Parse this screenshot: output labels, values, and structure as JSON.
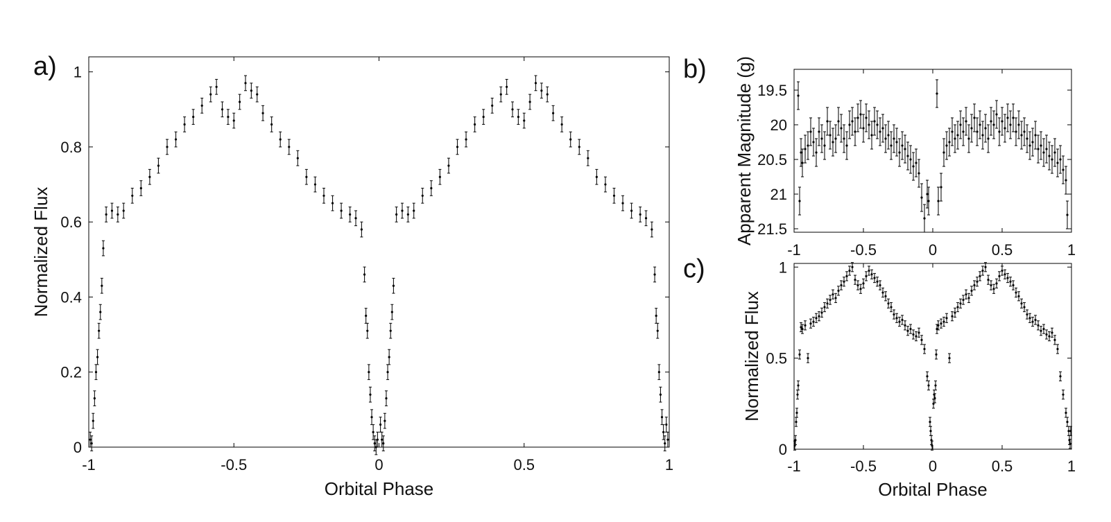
{
  "chart_data": [
    {
      "panel": "a)",
      "type": "scatter",
      "xlabel": "Orbital Phase",
      "ylabel": "Normalized Flux",
      "xlim": [
        -1,
        1
      ],
      "ylim": [
        0,
        1.04
      ],
      "xticks": [
        "-1",
        "-0.5",
        "0",
        "0.5",
        "1"
      ],
      "yticks": [
        "0",
        "0.2",
        "0.4",
        "0.6",
        "0.8",
        "1"
      ],
      "series": [
        {
          "x": [
            -0.995,
            -0.99,
            -0.985,
            -0.98,
            -0.975,
            -0.97,
            -0.965,
            -0.96,
            -0.955,
            -0.95,
            -0.94,
            -0.92,
            -0.9,
            -0.88,
            -0.85,
            -0.82,
            -0.79,
            -0.76,
            -0.73,
            -0.7,
            -0.67,
            -0.64,
            -0.61,
            -0.58,
            -0.56,
            -0.54,
            -0.52,
            -0.5,
            -0.48,
            -0.46,
            -0.44,
            -0.42,
            -0.4,
            -0.37,
            -0.34,
            -0.31,
            -0.28,
            -0.25,
            -0.22,
            -0.19,
            -0.16,
            -0.13,
            -0.1,
            -0.08,
            -0.06,
            -0.05,
            -0.045,
            -0.04,
            -0.035,
            -0.03,
            -0.025,
            -0.02,
            -0.015,
            -0.01,
            -0.005,
            0.005,
            0.01,
            0.015,
            0.02,
            0.025,
            0.03,
            0.035,
            0.04,
            0.045,
            0.05,
            0.06,
            0.08,
            0.1,
            0.12,
            0.15,
            0.18,
            0.21,
            0.24,
            0.27,
            0.3,
            0.33,
            0.36,
            0.39,
            0.42,
            0.44,
            0.46,
            0.48,
            0.5,
            0.52,
            0.54,
            0.56,
            0.58,
            0.6,
            0.63,
            0.66,
            0.69,
            0.72,
            0.75,
            0.78,
            0.81,
            0.84,
            0.87,
            0.9,
            0.92,
            0.94,
            0.95,
            0.955,
            0.96,
            0.965,
            0.97,
            0.975,
            0.98,
            0.985,
            0.99,
            0.995
          ],
          "y": [
            0.02,
            0.01,
            0.07,
            0.13,
            0.2,
            0.24,
            0.31,
            0.36,
            0.43,
            0.53,
            0.62,
            0.63,
            0.62,
            0.63,
            0.67,
            0.69,
            0.72,
            0.75,
            0.8,
            0.82,
            0.86,
            0.88,
            0.91,
            0.94,
            0.96,
            0.9,
            0.88,
            0.87,
            0.92,
            0.97,
            0.95,
            0.94,
            0.89,
            0.86,
            0.82,
            0.8,
            0.77,
            0.72,
            0.7,
            0.67,
            0.65,
            0.63,
            0.62,
            0.61,
            0.58,
            0.46,
            0.35,
            0.31,
            0.2,
            0.14,
            0.08,
            0.04,
            0.01,
            0.0,
            0.02,
            0.06,
            0.02,
            0.01,
            0.07,
            0.13,
            0.2,
            0.24,
            0.31,
            0.36,
            0.43,
            0.62,
            0.63,
            0.62,
            0.63,
            0.67,
            0.69,
            0.72,
            0.75,
            0.8,
            0.82,
            0.86,
            0.88,
            0.91,
            0.94,
            0.96,
            0.9,
            0.88,
            0.87,
            0.92,
            0.97,
            0.95,
            0.94,
            0.89,
            0.86,
            0.82,
            0.8,
            0.77,
            0.72,
            0.7,
            0.67,
            0.65,
            0.63,
            0.62,
            0.61,
            0.58,
            0.46,
            0.35,
            0.31,
            0.2,
            0.14,
            0.08,
            0.04,
            0.01,
            0.06,
            0.02
          ],
          "yerr": 0.02
        }
      ]
    },
    {
      "panel": "b)",
      "type": "scatter",
      "xlabel": "",
      "ylabel": "Apparent Magnitude (g)",
      "xlim": [
        -1,
        1
      ],
      "ylim": [
        19.2,
        21.55
      ],
      "y_reversed": true,
      "xticks": [
        "-1",
        "-0.5",
        "0",
        "0.5",
        "1"
      ],
      "yticks": [
        "19.5",
        "20",
        "20.5",
        "21",
        "21.5"
      ],
      "series": [
        {
          "x": [
            -0.97,
            -0.96,
            -0.95,
            -0.94,
            -0.92,
            -0.9,
            -0.88,
            -0.86,
            -0.84,
            -0.82,
            -0.8,
            -0.78,
            -0.76,
            -0.74,
            -0.72,
            -0.7,
            -0.68,
            -0.66,
            -0.64,
            -0.62,
            -0.6,
            -0.58,
            -0.56,
            -0.54,
            -0.52,
            -0.5,
            -0.48,
            -0.46,
            -0.44,
            -0.42,
            -0.4,
            -0.38,
            -0.36,
            -0.34,
            -0.32,
            -0.3,
            -0.28,
            -0.26,
            -0.24,
            -0.22,
            -0.2,
            -0.18,
            -0.16,
            -0.14,
            -0.12,
            -0.1,
            -0.08,
            -0.06,
            -0.04,
            -0.03,
            0.03,
            0.04,
            0.06,
            0.08,
            0.1,
            0.12,
            0.14,
            0.16,
            0.18,
            0.2,
            0.22,
            0.24,
            0.26,
            0.28,
            0.3,
            0.32,
            0.34,
            0.36,
            0.38,
            0.4,
            0.42,
            0.44,
            0.46,
            0.48,
            0.5,
            0.52,
            0.54,
            0.56,
            0.58,
            0.6,
            0.62,
            0.64,
            0.66,
            0.68,
            0.7,
            0.72,
            0.74,
            0.76,
            0.78,
            0.8,
            0.82,
            0.84,
            0.86,
            0.88,
            0.9,
            0.92,
            0.94,
            0.96,
            0.97
          ],
          "y": [
            19.58,
            21.1,
            20.4,
            20.55,
            20.35,
            20.3,
            20.1,
            20.25,
            20.4,
            20.1,
            20.2,
            20.3,
            19.95,
            20.15,
            20.25,
            20.2,
            19.95,
            20.05,
            20.2,
            20.3,
            20.0,
            19.95,
            20.1,
            19.9,
            19.85,
            20.05,
            19.9,
            20.0,
            20.15,
            19.95,
            20.0,
            20.1,
            20.05,
            20.2,
            20.15,
            20.3,
            20.2,
            20.25,
            20.4,
            20.3,
            20.35,
            20.45,
            20.5,
            20.6,
            20.55,
            20.7,
            21.05,
            21.35,
            21.0,
            21.1,
            19.55,
            21.1,
            20.9,
            20.4,
            20.3,
            20.25,
            20.1,
            20.2,
            20.15,
            20.0,
            20.1,
            19.95,
            20.2,
            20.05,
            19.9,
            20.1,
            20.0,
            20.15,
            20.05,
            20.2,
            19.95,
            20.0,
            19.85,
            20.1,
            19.95,
            20.05,
            19.9,
            20.0,
            19.9,
            20.1,
            20.0,
            20.15,
            20.1,
            20.2,
            20.3,
            20.25,
            20.15,
            20.35,
            20.3,
            20.4,
            20.35,
            20.45,
            20.5,
            20.4,
            20.55,
            20.5,
            20.65,
            20.8,
            21.3
          ],
          "yerr": 0.2
        }
      ]
    },
    {
      "panel": "c)",
      "type": "scatter",
      "xlabel": "Orbital Phase",
      "ylabel": "Normalized Flux",
      "xlim": [
        -1,
        1
      ],
      "ylim": [
        0,
        1.02
      ],
      "xticks": [
        "-1",
        "-0.5",
        "0",
        "0.5",
        "1"
      ],
      "yticks": [
        "0",
        "0.5",
        "1"
      ],
      "series": [
        {
          "x": [
            -0.995,
            -0.99,
            -0.985,
            -0.98,
            -0.975,
            -0.97,
            -0.96,
            -0.95,
            -0.94,
            -0.92,
            -0.9,
            -0.88,
            -0.86,
            -0.84,
            -0.82,
            -0.8,
            -0.78,
            -0.76,
            -0.74,
            -0.72,
            -0.7,
            -0.68,
            -0.66,
            -0.64,
            -0.62,
            -0.6,
            -0.58,
            -0.56,
            -0.54,
            -0.52,
            -0.5,
            -0.48,
            -0.46,
            -0.44,
            -0.42,
            -0.4,
            -0.38,
            -0.36,
            -0.34,
            -0.32,
            -0.3,
            -0.28,
            -0.26,
            -0.24,
            -0.22,
            -0.2,
            -0.18,
            -0.16,
            -0.14,
            -0.12,
            -0.1,
            -0.08,
            -0.06,
            -0.04,
            -0.03,
            -0.02,
            -0.015,
            -0.01,
            -0.005,
            0.005,
            0.01,
            0.015,
            0.02,
            0.025,
            0.03,
            0.04,
            0.06,
            0.08,
            0.1,
            0.12,
            0.14,
            0.16,
            0.18,
            0.2,
            0.22,
            0.24,
            0.26,
            0.28,
            0.3,
            0.32,
            0.34,
            0.36,
            0.38,
            0.4,
            0.42,
            0.44,
            0.46,
            0.48,
            0.5,
            0.52,
            0.54,
            0.56,
            0.58,
            0.6,
            0.62,
            0.64,
            0.66,
            0.68,
            0.7,
            0.72,
            0.74,
            0.76,
            0.78,
            0.8,
            0.82,
            0.84,
            0.86,
            0.88,
            0.9,
            0.92,
            0.94,
            0.96,
            0.97,
            0.98,
            0.985,
            0.99,
            0.995
          ],
          "y": [
            0.02,
            0.05,
            0.15,
            0.2,
            0.3,
            0.35,
            0.52,
            0.67,
            0.66,
            0.68,
            0.5,
            0.69,
            0.7,
            0.72,
            0.73,
            0.75,
            0.78,
            0.8,
            0.82,
            0.85,
            0.83,
            0.87,
            0.9,
            0.92,
            0.95,
            0.98,
            1.0,
            0.93,
            0.9,
            0.88,
            0.91,
            0.95,
            0.98,
            0.96,
            0.94,
            0.92,
            0.9,
            0.86,
            0.84,
            0.8,
            0.78,
            0.74,
            0.72,
            0.7,
            0.71,
            0.68,
            0.65,
            0.66,
            0.63,
            0.62,
            0.64,
            0.6,
            0.55,
            0.4,
            0.35,
            0.15,
            0.1,
            0.05,
            0.02,
            0.25,
            0.3,
            0.28,
            0.35,
            0.52,
            0.66,
            0.68,
            0.69,
            0.7,
            0.72,
            0.5,
            0.73,
            0.75,
            0.78,
            0.8,
            0.82,
            0.85,
            0.83,
            0.87,
            0.9,
            0.92,
            0.95,
            0.98,
            1.0,
            0.93,
            0.9,
            0.88,
            0.91,
            0.95,
            0.98,
            0.96,
            0.94,
            0.92,
            0.9,
            0.86,
            0.84,
            0.8,
            0.78,
            0.74,
            0.72,
            0.7,
            0.71,
            0.68,
            0.65,
            0.66,
            0.63,
            0.62,
            0.64,
            0.6,
            0.55,
            0.4,
            0.3,
            0.2,
            0.15,
            0.1,
            0.05,
            0.03,
            0.1
          ],
          "yerr": 0.025
        }
      ]
    }
  ]
}
